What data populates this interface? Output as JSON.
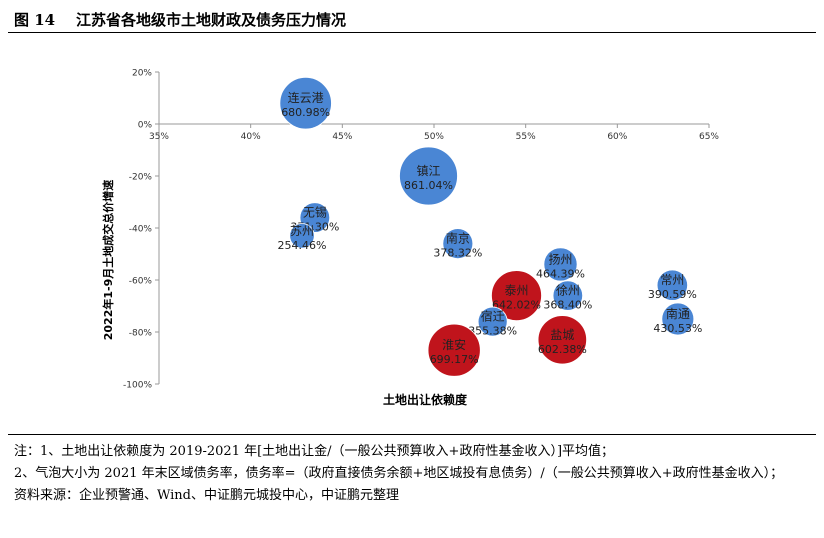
{
  "header": {
    "figure_number": "图 14",
    "title": "江苏省各地级市土地财政及债务压力情况"
  },
  "chart_data": {
    "type": "scatter",
    "subtype": "bubble",
    "xlabel": "土地出让依赖度",
    "ylabel": "2022年1-9月土地成交总价增速",
    "xlim": [
      35,
      65
    ],
    "ylim": [
      -100,
      20
    ],
    "x_ticks": [
      "35%",
      "40%",
      "45%",
      "50%",
      "55%",
      "60%",
      "65%"
    ],
    "y_ticks": [
      "20%",
      "0%",
      "-20%",
      "-40%",
      "-60%",
      "-80%",
      "-100%"
    ],
    "x_axis_position": "y=0",
    "grid": false,
    "legend": "none",
    "colors": {
      "blue": "#4a86d4",
      "red": "#c0141c"
    },
    "points": [
      {
        "name": "连云港",
        "x": 43.0,
        "y": 8,
        "size": 680.98,
        "label": "680.98%",
        "color": "blue"
      },
      {
        "name": "镇江",
        "x": 49.7,
        "y": -20,
        "size": 861.04,
        "label": "861.04%",
        "color": "blue"
      },
      {
        "name": "无锡",
        "x": 43.5,
        "y": -36,
        "size": 371.3,
        "label": "371.30%",
        "color": "blue"
      },
      {
        "name": "苏州",
        "x": 42.8,
        "y": -43,
        "size": 254.46,
        "label": "254.46%",
        "color": "blue"
      },
      {
        "name": "南京",
        "x": 51.3,
        "y": -46,
        "size": 378.32,
        "label": "378.32%",
        "color": "blue"
      },
      {
        "name": "扬州",
        "x": 56.9,
        "y": -54,
        "size": 464.39,
        "label": "464.39%",
        "color": "blue"
      },
      {
        "name": "泰州",
        "x": 54.5,
        "y": -66,
        "size": 642.02,
        "label": "642.02%",
        "color": "red"
      },
      {
        "name": "徐州",
        "x": 57.3,
        "y": -66,
        "size": 368.4,
        "label": "368.40%",
        "color": "blue"
      },
      {
        "name": "常州",
        "x": 63.0,
        "y": -62,
        "size": 390.59,
        "label": "390.59%",
        "color": "blue"
      },
      {
        "name": "南通",
        "x": 63.3,
        "y": -75,
        "size": 430.53,
        "label": "430.53%",
        "color": "blue"
      },
      {
        "name": "宿迁",
        "x": 53.2,
        "y": -76,
        "size": 355.38,
        "label": "355.38%",
        "color": "blue"
      },
      {
        "name": "盐城",
        "x": 57.0,
        "y": -83,
        "size": 602.38,
        "label": "602.38%",
        "color": "red"
      },
      {
        "name": "淮安",
        "x": 51.1,
        "y": -87,
        "size": 699.17,
        "label": "699.17%",
        "color": "red"
      }
    ]
  },
  "notes": [
    "注：1、土地出让依赖度为 2019-2021 年[土地出让金/（一般公共预算收入+政府性基金收入）]平均值；",
    "2、气泡大小为 2021 年末区域债务率，债务率=（政府直接债务余额+地区城投有息债务）/（一般公共预算收入+政府性基金收入）；",
    "资料来源：企业预警通、Wind、中证鹏元城投中心，中证鹏元整理"
  ]
}
